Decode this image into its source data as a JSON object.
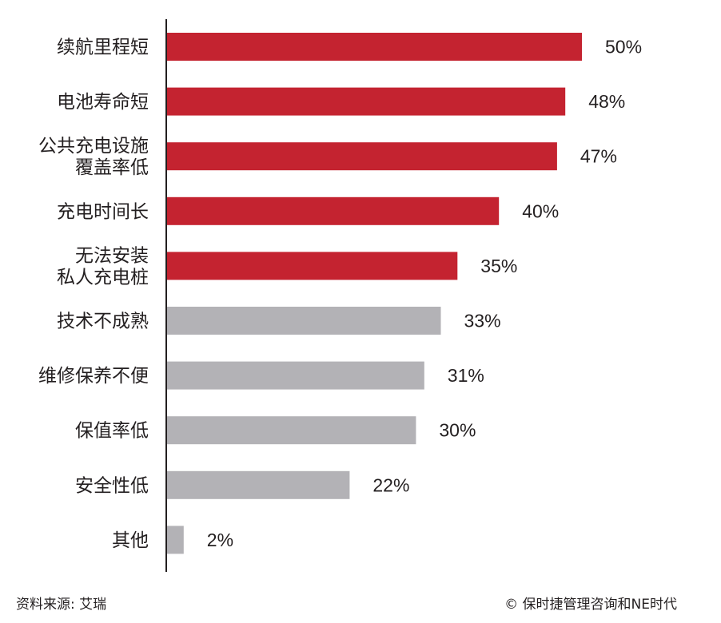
{
  "chart_data": {
    "type": "bar",
    "orientation": "horizontal",
    "categories": [
      [
        "续航里程短"
      ],
      [
        "电池寿命短"
      ],
      [
        "公共充电设施",
        "覆盖率低"
      ],
      [
        "充电时间长"
      ],
      [
        "无法安装",
        "私人充电桩"
      ],
      [
        "技术不成熟"
      ],
      [
        "维修保养不便"
      ],
      [
        "保值率低"
      ],
      [
        "安全性低"
      ],
      [
        "其他"
      ]
    ],
    "values": [
      50,
      48,
      47,
      40,
      35,
      33,
      31,
      30,
      22,
      2
    ],
    "value_labels": [
      "50%",
      "48%",
      "47%",
      "40%",
      "35%",
      "33%",
      "31%",
      "30%",
      "22%",
      "2%"
    ],
    "highlight": [
      true,
      true,
      true,
      true,
      true,
      false,
      false,
      false,
      false,
      false
    ],
    "xlim": [
      0,
      50
    ],
    "grid": false,
    "colors": {
      "highlight": "#c42330",
      "normal": "#b3b2b6",
      "axis": "#231f20"
    }
  },
  "footer": {
    "source": "资料来源: 艾瑞",
    "credit": "© 保时捷管理咨询和NE时代"
  }
}
